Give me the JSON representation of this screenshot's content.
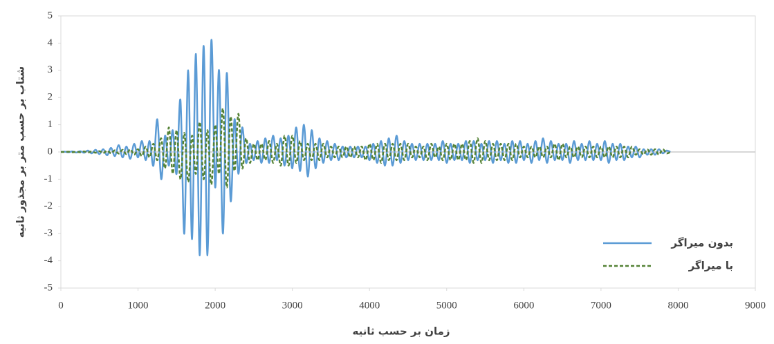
{
  "chart_data": {
    "type": "line",
    "x_label": "زمان بر حسب ثانیه",
    "y_label": "شتاب بر حسب متر بر مجذور ثانیه",
    "xlim": [
      0,
      9000
    ],
    "xticks": [
      0,
      1000,
      2000,
      3000,
      4000,
      5000,
      6000,
      7000,
      8000,
      9000
    ],
    "ylim": [
      -5,
      5
    ],
    "yticks": [
      -5,
      -4,
      -3,
      -2,
      -1,
      0,
      1,
      2,
      3,
      4,
      5
    ],
    "legend": "bottom-right",
    "x": [
      0,
      50,
      100,
      150,
      200,
      250,
      300,
      350,
      400,
      450,
      500,
      550,
      600,
      650,
      700,
      750,
      800,
      850,
      900,
      950,
      1000,
      1050,
      1100,
      1150,
      1200,
      1250,
      1300,
      1350,
      1400,
      1450,
      1500,
      1550,
      1600,
      1650,
      1700,
      1750,
      1800,
      1850,
      1900,
      1950,
      2000,
      2050,
      2100,
      2150,
      2200,
      2250,
      2300,
      2350,
      2400,
      2450,
      2500,
      2550,
      2600,
      2650,
      2700,
      2750,
      2800,
      2850,
      2900,
      2950,
      3000,
      3050,
      3100,
      3150,
      3200,
      3250,
      3300,
      3350,
      3400,
      3450,
      3500,
      3550,
      3600,
      3650,
      3700,
      3750,
      3800,
      3850,
      3900,
      3950,
      4000,
      4050,
      4100,
      4150,
      4200,
      4250,
      4300,
      4350,
      4400,
      4450,
      4500,
      4550,
      4600,
      4650,
      4700,
      4750,
      4800,
      4850,
      4900,
      4950,
      5000,
      5050,
      5100,
      5150,
      5200,
      5250,
      5300,
      5350,
      5400,
      5450,
      5500,
      5550,
      5600,
      5650,
      5700,
      5750,
      5800,
      5850,
      5900,
      5950,
      6000,
      6050,
      6100,
      6150,
      6200,
      6250,
      6300,
      6350,
      6400,
      6450,
      6500,
      6550,
      6600,
      6650,
      6700,
      6750,
      6800,
      6850,
      6900,
      6950,
      7000,
      7050,
      7100,
      7150,
      7200,
      7250,
      7300,
      7350,
      7400,
      7450,
      7500,
      7550,
      7600,
      7650,
      7700,
      7750,
      7800,
      7850,
      7900
    ],
    "series": [
      {
        "name": "بدون میراگر",
        "color": "#5b9bd5",
        "dash": false,
        "values": [
          0,
          0.01,
          -0.01,
          0.02,
          -0.02,
          0.03,
          -0.03,
          0.05,
          -0.05,
          0.08,
          -0.08,
          0.1,
          -0.12,
          0.15,
          -0.15,
          0.25,
          -0.2,
          0.2,
          -0.25,
          0.3,
          -0.2,
          0.4,
          -0.3,
          0.4,
          -0.5,
          1.2,
          -1.0,
          0.6,
          -0.5,
          0.8,
          -0.8,
          1.9,
          -3.0,
          3.0,
          -3.2,
          3.6,
          -3.8,
          3.9,
          -3.8,
          4.1,
          -1.3,
          3.0,
          -3.0,
          2.9,
          -1.8,
          1.2,
          -0.8,
          0.9,
          -0.4,
          0.3,
          -0.3,
          0.4,
          -0.4,
          0.5,
          -0.4,
          0.6,
          -0.3,
          0.5,
          -0.5,
          0.6,
          -0.6,
          0.9,
          -0.7,
          1.0,
          -0.9,
          0.8,
          -0.6,
          0.5,
          -0.4,
          0.4,
          -0.3,
          0.3,
          -0.3,
          0.2,
          -0.2,
          0.2,
          -0.2,
          0.2,
          -0.2,
          0.2,
          -0.3,
          0.3,
          -0.4,
          0.4,
          -0.5,
          0.5,
          -0.5,
          0.6,
          -0.4,
          0.4,
          -0.3,
          0.3,
          -0.3,
          0.3,
          -0.3,
          0.3,
          -0.3,
          0.3,
          -0.3,
          0.4,
          -0.4,
          0.3,
          -0.3,
          0.3,
          -0.3,
          0.4,
          -0.4,
          0.4,
          -0.3,
          0.3,
          -0.3,
          0.4,
          -0.4,
          0.4,
          -0.3,
          0.3,
          -0.4,
          0.4,
          -0.4,
          0.4,
          -0.3,
          0.3,
          -0.4,
          0.4,
          -0.3,
          0.5,
          -0.4,
          0.4,
          -0.3,
          0.3,
          -0.3,
          0.3,
          -0.4,
          0.4,
          -0.3,
          0.3,
          -0.3,
          0.4,
          -0.3,
          0.3,
          -0.3,
          0.4,
          -0.4,
          0.3,
          -0.3,
          0.3,
          -0.3,
          0.2,
          -0.2,
          0.2,
          -0.2,
          0.1,
          -0.1,
          0.1,
          -0.1,
          0.1,
          -0.05,
          0.05,
          0
        ]
      },
      {
        "name": "با میراگر",
        "color": "#548235",
        "dash": true,
        "values": [
          0,
          0,
          0.01,
          -0.01,
          0.01,
          -0.01,
          0.02,
          -0.02,
          0.02,
          -0.03,
          0.03,
          -0.04,
          0.05,
          -0.05,
          0.06,
          -0.06,
          0.08,
          -0.08,
          0.1,
          -0.1,
          0.1,
          -0.15,
          0.2,
          -0.2,
          0.3,
          -0.3,
          0.5,
          -0.6,
          0.9,
          -0.8,
          0.8,
          -1.0,
          0.7,
          -1.1,
          0.6,
          -0.8,
          1.1,
          -1.0,
          0.8,
          -1.2,
          1.0,
          -0.8,
          1.6,
          -1.3,
          1.3,
          -0.7,
          1.4,
          -0.6,
          0.5,
          -0.4,
          0.3,
          -0.3,
          0.3,
          -0.3,
          0.4,
          -0.4,
          0.3,
          -0.5,
          0.6,
          -0.5,
          0.6,
          -0.4,
          0.4,
          -0.3,
          0.3,
          -0.3,
          0.3,
          -0.3,
          0.3,
          -0.2,
          0.2,
          -0.2,
          0.2,
          -0.2,
          0.2,
          -0.2,
          0.2,
          -0.2,
          0.2,
          -0.3,
          0.3,
          -0.3,
          0.3,
          -0.4,
          0.3,
          -0.3,
          0.3,
          -0.3,
          0.3,
          -0.3,
          0.3,
          -0.2,
          0.2,
          -0.2,
          0.2,
          -0.3,
          0.3,
          -0.2,
          0.2,
          -0.3,
          0.3,
          -0.3,
          0.3,
          -0.3,
          0.3,
          -0.3,
          0.4,
          -0.4,
          0.5,
          -0.4,
          0.4,
          -0.3,
          0.3,
          -0.3,
          0.3,
          -0.3,
          0.3,
          -0.3,
          0.3,
          -0.2,
          0.2,
          -0.2,
          0.2,
          -0.2,
          0.2,
          -0.2,
          0.2,
          -0.2,
          0.3,
          -0.3,
          0.3,
          -0.2,
          0.2,
          -0.2,
          0.2,
          -0.2,
          0.2,
          -0.2,
          0.2,
          -0.2,
          0.2,
          -0.2,
          0.2,
          -0.2,
          0.2,
          -0.2,
          0.2,
          -0.2,
          0.2,
          -0.1,
          0.1,
          -0.1,
          0.1,
          -0.1,
          0.1,
          -0.1,
          0.1,
          -0.05,
          0
        ]
      }
    ]
  }
}
